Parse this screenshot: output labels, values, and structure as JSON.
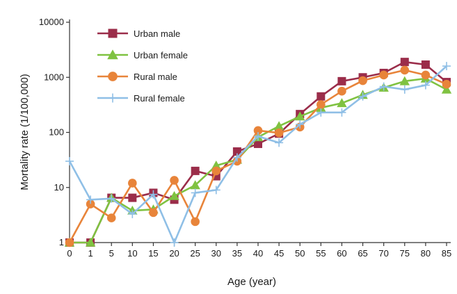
{
  "chart_data": {
    "type": "line",
    "title": "",
    "xlabel": "Age (year)",
    "ylabel": "Mortality rate (1/100,000)",
    "yscale": "log",
    "ylim": [
      1,
      10000
    ],
    "y_ticks": [
      1,
      10,
      100,
      1000,
      10000
    ],
    "y_tick_labels": [
      "1",
      "10",
      "100",
      "1000",
      "10000"
    ],
    "x": [
      "0",
      "1",
      "5",
      "10",
      "15",
      "20",
      "25",
      "30",
      "35",
      "40",
      "45",
      "50",
      "55",
      "60",
      "65",
      "70",
      "75",
      "80",
      "85"
    ],
    "grid": false,
    "legend_position": "top-left",
    "series": [
      {
        "name": "Urban male",
        "color": "#9b2d4a",
        "marker": "square",
        "values": [
          1,
          1,
          6.5,
          6.5,
          8,
          6,
          20,
          16,
          45,
          62,
          95,
          215,
          450,
          850,
          1000,
          1200,
          1900,
          1700,
          820
        ]
      },
      {
        "name": "Urban female",
        "color": "#7fc241",
        "marker": "triangle",
        "values": [
          1,
          1,
          6.5,
          3.8,
          4,
          7,
          11,
          25,
          32,
          82,
          130,
          195,
          280,
          340,
          480,
          650,
          850,
          950,
          600
        ]
      },
      {
        "name": "Rural male",
        "color": "#e8843a",
        "marker": "circle",
        "values": [
          1,
          5,
          2.8,
          12,
          3.5,
          13.5,
          2.4,
          20,
          30,
          108,
          98,
          125,
          320,
          560,
          870,
          1100,
          1350,
          1100,
          750
        ]
      },
      {
        "name": "Rural female",
        "color": "#8fbfe6",
        "marker": "plus",
        "values": [
          30,
          6,
          6.3,
          3.3,
          7.5,
          1,
          8,
          9,
          35,
          85,
          65,
          140,
          230,
          230,
          450,
          680,
          600,
          720,
          1600
        ]
      }
    ]
  }
}
